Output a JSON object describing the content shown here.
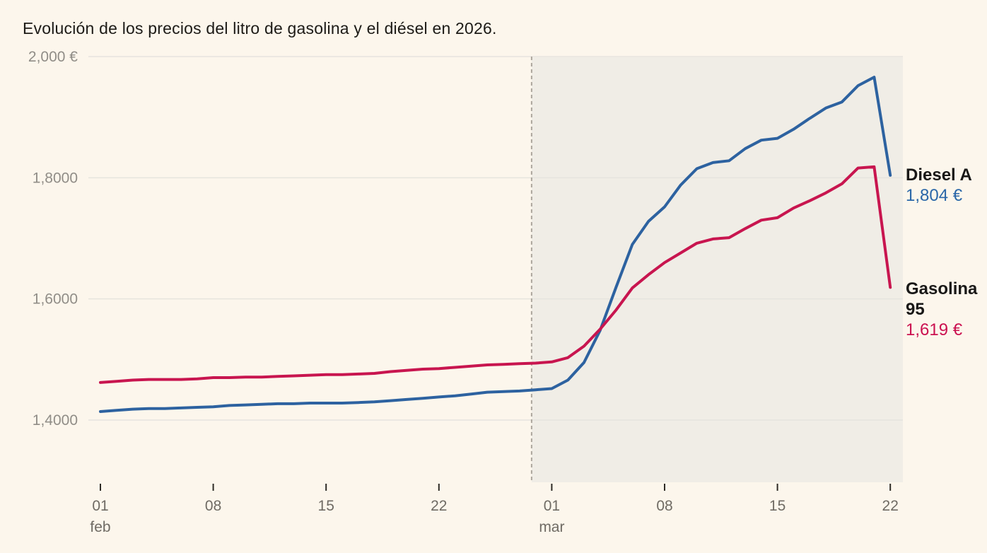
{
  "title": "Evolución de los precios del litro de gasolina y el diésel en 2026.",
  "chart_data": {
    "type": "line",
    "title": "Evolución de los precios del litro de gasolina y el diésel en 2026.",
    "currency": "€",
    "grid": "on",
    "ylim": [
      1.4,
      2.0
    ],
    "y_axis": {
      "ticks": [
        {
          "label": "2,000 €",
          "value": 2.0
        },
        {
          "label": "1,8000",
          "value": 1.8
        },
        {
          "label": "1,6000",
          "value": 1.6
        },
        {
          "label": "1,4000",
          "value": 1.4
        }
      ]
    },
    "x_axis": {
      "n_points": 50,
      "ticks": [
        {
          "label": "01",
          "month": "feb",
          "day_index": 0
        },
        {
          "label": "08",
          "day_index": 7
        },
        {
          "label": "15",
          "day_index": 14
        },
        {
          "label": "22",
          "day_index": 21
        },
        {
          "label": "01",
          "month": "mar",
          "day_index": 28
        },
        {
          "label": "08",
          "day_index": 35
        },
        {
          "label": "15",
          "day_index": 42
        },
        {
          "label": "22",
          "day_index": 49
        }
      ]
    },
    "annotations": {
      "dashed_divider_day_index": 26.75,
      "shaded_region_from_day_index": 26.75,
      "shaded_region_color": "#f0ede6"
    },
    "series": [
      {
        "name": "Diesel A",
        "color": "#2d62a0",
        "end_label": "1,804 €",
        "values": [
          1.414,
          1.416,
          1.418,
          1.419,
          1.419,
          1.42,
          1.421,
          1.422,
          1.424,
          1.425,
          1.426,
          1.427,
          1.427,
          1.428,
          1.428,
          1.428,
          1.429,
          1.43,
          1.432,
          1.434,
          1.436,
          1.438,
          1.44,
          1.443,
          1.446,
          1.447,
          1.448,
          1.45,
          1.452,
          1.466,
          1.495,
          1.548,
          1.62,
          1.69,
          1.728,
          1.752,
          1.788,
          1.815,
          1.825,
          1.828,
          1.848,
          1.862,
          1.865,
          1.88,
          1.898,
          1.915,
          1.925,
          1.952,
          1.966,
          1.804
        ]
      },
      {
        "name": "Gasolina 95",
        "color": "#c8154f",
        "end_label": "1,619 €",
        "values": [
          1.462,
          1.464,
          1.466,
          1.467,
          1.467,
          1.467,
          1.468,
          1.47,
          1.47,
          1.471,
          1.471,
          1.472,
          1.473,
          1.474,
          1.475,
          1.475,
          1.476,
          1.477,
          1.48,
          1.482,
          1.484,
          1.485,
          1.487,
          1.489,
          1.491,
          1.492,
          1.493,
          1.494,
          1.496,
          1.503,
          1.522,
          1.55,
          1.582,
          1.618,
          1.64,
          1.66,
          1.676,
          1.692,
          1.699,
          1.701,
          1.716,
          1.73,
          1.734,
          1.75,
          1.762,
          1.775,
          1.79,
          1.816,
          1.818,
          1.619
        ]
      }
    ]
  }
}
